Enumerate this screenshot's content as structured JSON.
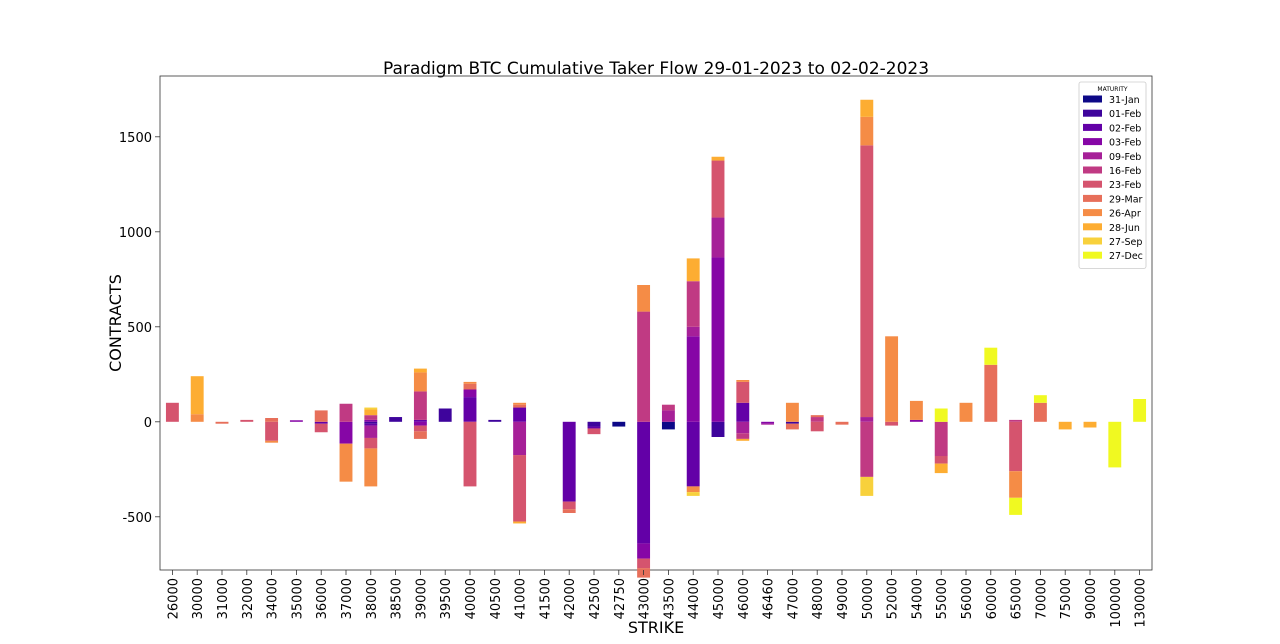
{
  "chart_data": {
    "type": "bar",
    "stacked": true,
    "title": "Paradigm BTC Cumulative Taker Flow 29-01-2023 to 02-02-2023",
    "xlabel": "STRIKE",
    "ylabel": "CONTRACTS",
    "ylim": [
      -780,
      1820
    ],
    "yticks": [
      -500,
      0,
      500,
      1000,
      1500
    ],
    "grid": false,
    "legend": {
      "title": "MATURITY",
      "placement": "top-right"
    },
    "categories": [
      "26000",
      "30000",
      "31000",
      "32000",
      "34000",
      "35000",
      "36000",
      "37000",
      "38000",
      "38500",
      "39000",
      "39500",
      "40000",
      "40500",
      "41000",
      "41500",
      "42000",
      "42500",
      "42750",
      "43000",
      "43500",
      "44000",
      "45000",
      "46000",
      "46460",
      "47000",
      "48000",
      "49000",
      "50000",
      "52000",
      "54000",
      "55000",
      "56000",
      "60000",
      "65000",
      "70000",
      "75000",
      "90000",
      "100000",
      "130000"
    ],
    "series": [
      {
        "name": "31-Jan",
        "color": "#0d0887",
        "values": [
          0,
          0,
          0,
          0,
          0,
          0,
          0,
          0,
          0,
          0,
          0,
          0,
          0,
          0,
          0,
          0,
          0,
          0,
          -25,
          0,
          -40,
          0,
          0,
          0,
          0,
          0,
          0,
          0,
          0,
          0,
          0,
          0,
          0,
          0,
          0,
          0,
          0,
          0,
          0,
          0
        ]
      },
      {
        "name": "01-Feb",
        "color": "#3e049c",
        "values": [
          0,
          0,
          0,
          0,
          0,
          0,
          0,
          0,
          -10,
          25,
          0,
          70,
          0,
          10,
          0,
          0,
          0,
          -25,
          0,
          0,
          0,
          0,
          -80,
          0,
          0,
          -10,
          0,
          0,
          0,
          0,
          0,
          0,
          0,
          0,
          0,
          0,
          0,
          0,
          0,
          0
        ]
      },
      {
        "name": "02-Feb",
        "color": "#6300a7",
        "values": [
          0,
          0,
          0,
          0,
          0,
          0,
          -10,
          0,
          -10,
          0,
          10,
          0,
          130,
          0,
          75,
          0,
          -420,
          -10,
          0,
          -640,
          0,
          -340,
          0,
          100,
          0,
          0,
          0,
          0,
          0,
          0,
          0,
          0,
          0,
          0,
          0,
          0,
          0,
          0,
          0,
          0
        ]
      },
      {
        "name": "03-Feb",
        "color": "#8606a6",
        "values": [
          0,
          0,
          0,
          0,
          0,
          8,
          0,
          -115,
          10,
          0,
          -20,
          0,
          40,
          0,
          0,
          0,
          0,
          0,
          0,
          -80,
          0,
          450,
          865,
          0,
          -10,
          0,
          0,
          0,
          0,
          0,
          10,
          0,
          0,
          0,
          0,
          0,
          0,
          0,
          0,
          0
        ]
      },
      {
        "name": "09-Feb",
        "color": "#a62098",
        "values": [
          0,
          0,
          0,
          0,
          0,
          0,
          0,
          0,
          -65,
          0,
          0,
          0,
          0,
          0,
          -175,
          0,
          0,
          0,
          0,
          0,
          60,
          50,
          210,
          -60,
          -5,
          0,
          0,
          0,
          25,
          0,
          0,
          0,
          0,
          0,
          0,
          0,
          0,
          0,
          0,
          0
        ]
      },
      {
        "name": "16-Feb",
        "color": "#c03a83",
        "values": [
          0,
          0,
          0,
          0,
          0,
          0,
          0,
          95,
          25,
          0,
          150,
          0,
          0,
          0,
          0,
          0,
          0,
          0,
          0,
          580,
          30,
          240,
          0,
          -30,
          0,
          0,
          25,
          0,
          -290,
          0,
          0,
          -180,
          0,
          0,
          10,
          0,
          0,
          0,
          0,
          0
        ]
      },
      {
        "name": "23-Feb",
        "color": "#d5546e",
        "values": [
          100,
          0,
          0,
          10,
          -100,
          0,
          -45,
          0,
          -55,
          0,
          -30,
          0,
          -340,
          0,
          -350,
          0,
          -40,
          -30,
          0,
          -50,
          0,
          0,
          300,
          110,
          0,
          0,
          -50,
          0,
          1430,
          -20,
          0,
          -40,
          0,
          0,
          -260,
          0,
          0,
          0,
          0,
          0
        ]
      },
      {
        "name": "29-Mar",
        "color": "#e76f5a",
        "values": [
          0,
          0,
          -10,
          0,
          20,
          0,
          60,
          0,
          0,
          0,
          -40,
          0,
          30,
          0,
          15,
          0,
          -20,
          0,
          0,
          -50,
          0,
          0,
          0,
          0,
          0,
          -30,
          10,
          -15,
          0,
          0,
          0,
          0,
          0,
          300,
          0,
          100,
          0,
          0,
          0,
          0
        ]
      },
      {
        "name": "26-Apr",
        "color": "#f58c46",
        "values": [
          0,
          40,
          0,
          0,
          -10,
          0,
          0,
          -200,
          -200,
          0,
          100,
          0,
          10,
          0,
          10,
          0,
          0,
          0,
          0,
          140,
          0,
          -30,
          0,
          10,
          0,
          100,
          0,
          0,
          150,
          450,
          100,
          0,
          100,
          0,
          -140,
          0,
          0,
          0,
          0,
          0
        ]
      },
      {
        "name": "28-Jun",
        "color": "#fdad32",
        "values": [
          0,
          200,
          0,
          0,
          0,
          0,
          0,
          0,
          30,
          0,
          20,
          0,
          0,
          0,
          -10,
          0,
          0,
          0,
          0,
          0,
          0,
          120,
          20,
          -10,
          0,
          0,
          0,
          0,
          90,
          0,
          0,
          -50,
          0,
          0,
          0,
          0,
          -40,
          -30,
          0,
          0
        ]
      },
      {
        "name": "27-Sep",
        "color": "#f8d13c",
        "values": [
          0,
          0,
          0,
          0,
          0,
          0,
          0,
          0,
          10,
          0,
          0,
          0,
          0,
          0,
          0,
          0,
          0,
          0,
          0,
          0,
          0,
          -20,
          0,
          0,
          0,
          0,
          0,
          0,
          -100,
          0,
          0,
          0,
          0,
          0,
          0,
          0,
          0,
          0,
          0,
          0
        ]
      },
      {
        "name": "27-Dec",
        "color": "#f0f921",
        "values": [
          0,
          0,
          0,
          0,
          0,
          0,
          0,
          0,
          0,
          0,
          0,
          0,
          0,
          0,
          0,
          0,
          0,
          0,
          0,
          0,
          0,
          0,
          0,
          0,
          0,
          0,
          0,
          0,
          0,
          0,
          0,
          70,
          0,
          90,
          -90,
          40,
          0,
          0,
          -240,
          120
        ]
      }
    ]
  }
}
